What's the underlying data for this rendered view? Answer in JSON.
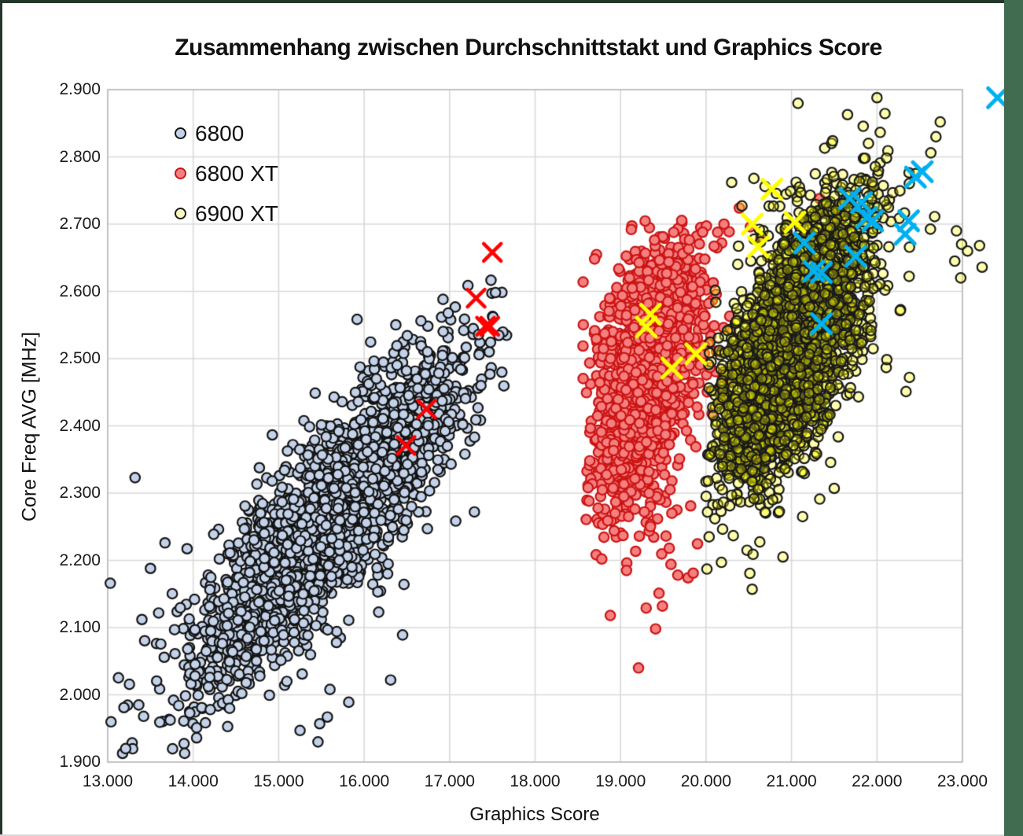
{
  "app": {
    "background": "#FFFFFF",
    "top_border_color": "#22372A",
    "right_band_color": "#416C50"
  },
  "chart_data": {
    "type": "scatter",
    "title": "Zusammenhang zwischen Durchschnittstakt und Graphics Score",
    "xlabel": "Graphics Score",
    "ylabel": "Core Freq AVG [MHz]",
    "xlim": [
      13000,
      23000
    ],
    "ylim": [
      1900,
      2900
    ],
    "x_ticks": [
      "13.000",
      "14.000",
      "15.000",
      "16.000",
      "17.000",
      "18.000",
      "19.000",
      "20.000",
      "21.000",
      "22.000",
      "23.000"
    ],
    "y_ticks": [
      "1.900",
      "2.000",
      "2.100",
      "2.200",
      "2.300",
      "2.400",
      "2.500",
      "2.600",
      "2.700",
      "2.800",
      "2.900"
    ],
    "grid": true,
    "grid_color": "#D9D9D9",
    "plot_border_color": "#BFBFBF",
    "legend_position": "top-left",
    "series": [
      {
        "name": "6800",
        "marker": "circle",
        "fill": "#C3D2E9",
        "fill_alpha": 1,
        "stroke": "#141414",
        "legend_fill": "#C3D2E9",
        "seed": 7,
        "cluster": {
          "n": 2400,
          "cx": 15600,
          "cy": 2268,
          "sx": 780,
          "sy": 120,
          "corr": 0.85,
          "clip_x": [
            12980,
            17680
          ],
          "clip_y": [
            1908,
            2622
          ]
        },
        "outliers": [
          [
            13030,
            2166
          ],
          [
            13320,
            2323
          ],
          [
            13400,
            2112
          ],
          [
            13500,
            2188
          ],
          [
            13670,
            2226
          ],
          [
            13190,
            1981
          ],
          [
            13770,
            1992
          ],
          [
            13830,
            1984
          ],
          [
            13890,
            1961
          ],
          [
            13960,
            1973
          ],
          [
            14100,
            1981
          ],
          [
            14200,
            1978
          ],
          [
            14040,
            1951
          ],
          [
            14040,
            1936
          ],
          [
            13900,
            1913
          ],
          [
            15250,
            1947
          ],
          [
            15480,
            1957
          ],
          [
            15570,
            1967
          ],
          [
            15460,
            1930
          ],
          [
            15600,
            2008
          ],
          [
            15820,
            1989
          ],
          [
            16310,
            2022
          ],
          [
            16450,
            2089
          ],
          [
            16160,
            2153
          ],
          [
            16740,
            2247
          ],
          [
            16170,
            2123
          ],
          [
            17290,
            2272
          ],
          [
            14620,
            2018
          ],
          [
            14780,
            2028
          ]
        ]
      },
      {
        "name": "6800 XT",
        "marker": "circle",
        "fill": "#F58080",
        "fill_alpha": 1,
        "stroke": "#CC1414",
        "legend_fill": "#F58080",
        "seed": 13,
        "cluster": {
          "n": 1600,
          "cx": 19330,
          "cy": 2482,
          "sx": 330,
          "sy": 100,
          "corr": 0.45,
          "clip_x": [
            18560,
            20430
          ],
          "clip_y": [
            2150,
            2706
          ]
        },
        "outliers": [
          [
            18850,
            2259
          ],
          [
            19220,
            2236
          ],
          [
            19570,
            2218
          ],
          [
            19600,
            2270
          ],
          [
            19820,
            2281
          ],
          [
            19590,
            2194
          ],
          [
            19070,
            2185
          ],
          [
            19670,
            2178
          ],
          [
            19790,
            2174
          ],
          [
            19850,
            2181
          ],
          [
            19450,
            2151
          ],
          [
            19300,
            2129
          ],
          [
            19490,
            2132
          ],
          [
            18880,
            2118
          ],
          [
            19410,
            2098
          ],
          [
            19210,
            2040
          ],
          [
            21330,
            2738
          ],
          [
            21310,
            2717
          ],
          [
            20390,
            2724
          ],
          [
            19960,
            2688
          ],
          [
            20210,
            2700
          ],
          [
            20520,
            2696
          ],
          [
            20640,
            2680
          ],
          [
            18640,
            2348
          ],
          [
            18620,
            2308
          ]
        ]
      },
      {
        "name": "6900 XT",
        "marker": "circle",
        "fill": "#FFFF00",
        "fill_alpha": 0.32,
        "stroke": "#1A1A1A",
        "legend_fill": "#FAFAC0",
        "seed": 21,
        "cluster": {
          "n": 3000,
          "cx": 21020,
          "cy": 2528,
          "sx": 440,
          "sy": 105,
          "corr": 0.62,
          "clip_x": [
            19980,
            23100
          ],
          "clip_y": [
            2165,
            2880
          ]
        },
        "outliers": [
          [
            22000,
            2888
          ],
          [
            22740,
            2852
          ],
          [
            22690,
            2830
          ],
          [
            22630,
            2806
          ],
          [
            21900,
            2820
          ],
          [
            21860,
            2798
          ],
          [
            20300,
            2762
          ],
          [
            20560,
            2768
          ],
          [
            20420,
            2727
          ],
          [
            20690,
            2756
          ],
          [
            22930,
            2690
          ],
          [
            22990,
            2670
          ],
          [
            22910,
            2645
          ],
          [
            22980,
            2620
          ],
          [
            23060,
            2660
          ],
          [
            22340,
            2451
          ],
          [
            22380,
            2472
          ],
          [
            20270,
            2322
          ],
          [
            20780,
            2290
          ],
          [
            21500,
            2307
          ],
          [
            21130,
            2265
          ],
          [
            20180,
            2197
          ],
          [
            20480,
            2215
          ],
          [
            20550,
            2209
          ],
          [
            20540,
            2157
          ],
          [
            21130,
            2332
          ],
          [
            20900,
            2205
          ],
          [
            23230,
            2636
          ],
          [
            23200,
            2668
          ]
        ]
      }
    ],
    "extra_markers": [
      {
        "name": "x-markers-red",
        "shape": "x",
        "color": "#FF0000",
        "size": 11,
        "line_width": 4.5,
        "points": [
          [
            16490,
            2371
          ],
          [
            16730,
            2425
          ],
          [
            17310,
            2590
          ],
          [
            17420,
            2548
          ],
          [
            17470,
            2548
          ],
          [
            17500,
            2658
          ]
        ]
      },
      {
        "name": "x-markers-yellow",
        "shape": "x",
        "color": "#FFFF00",
        "size": 12,
        "line_width": 5,
        "points": [
          [
            19300,
            2547
          ],
          [
            19350,
            2566
          ],
          [
            19600,
            2486
          ],
          [
            19880,
            2507
          ],
          [
            20540,
            2700
          ],
          [
            20610,
            2666
          ],
          [
            20770,
            2752
          ],
          [
            21040,
            2703
          ]
        ]
      },
      {
        "name": "x-markers-cyan",
        "shape": "x",
        "color": "#00B0F0",
        "size": 12,
        "line_width": 5,
        "points": [
          [
            21150,
            2672
          ],
          [
            21260,
            2630
          ],
          [
            21350,
            2628
          ],
          [
            21350,
            2552
          ],
          [
            21680,
            2738
          ],
          [
            21750,
            2652
          ],
          [
            21820,
            2732
          ],
          [
            21880,
            2710
          ],
          [
            21950,
            2705
          ],
          [
            22330,
            2685
          ],
          [
            22370,
            2705
          ],
          [
            22450,
            2770
          ],
          [
            22530,
            2778
          ],
          [
            23410,
            2888
          ]
        ]
      }
    ]
  }
}
